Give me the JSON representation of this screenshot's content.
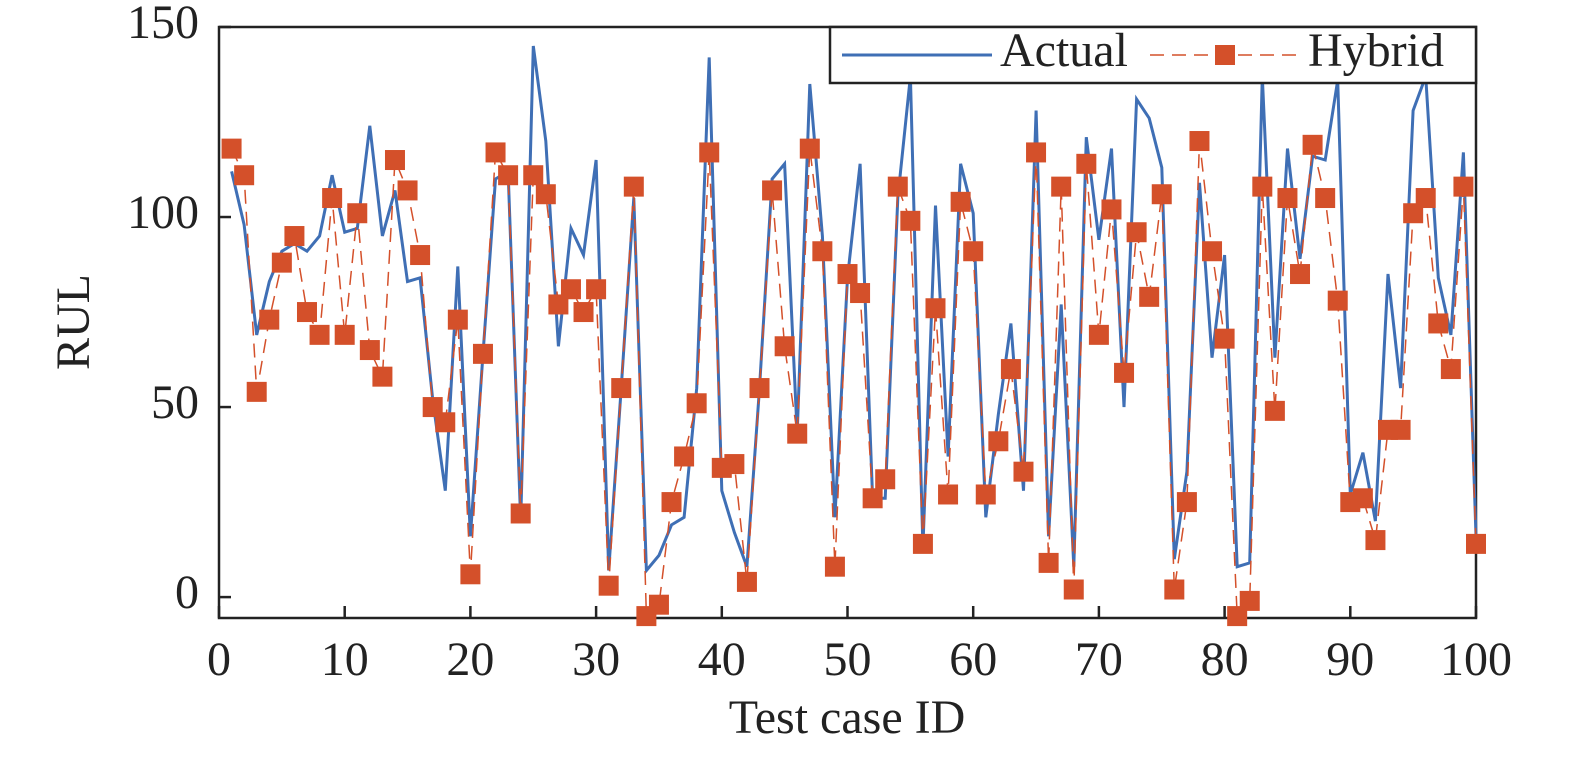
{
  "chart_data": {
    "type": "line",
    "x_label": "Test case ID",
    "y_label": "RUL",
    "x": [
      1,
      2,
      3,
      4,
      5,
      6,
      7,
      8,
      9,
      10,
      11,
      12,
      13,
      14,
      15,
      16,
      17,
      18,
      19,
      20,
      21,
      22,
      23,
      24,
      25,
      26,
      27,
      28,
      29,
      30,
      31,
      32,
      33,
      34,
      35,
      36,
      37,
      38,
      39,
      40,
      41,
      42,
      43,
      44,
      45,
      46,
      47,
      48,
      49,
      50,
      51,
      52,
      53,
      54,
      55,
      56,
      57,
      58,
      59,
      60,
      61,
      62,
      63,
      64,
      65,
      66,
      67,
      68,
      69,
      70,
      71,
      72,
      73,
      74,
      75,
      76,
      77,
      78,
      79,
      80,
      81,
      82,
      83,
      84,
      85,
      86,
      87,
      88,
      89,
      90,
      91,
      92,
      93,
      94,
      95,
      96,
      97,
      98,
      99,
      100
    ],
    "series": [
      {
        "name": "Actual",
        "color": "#3f6fb5",
        "style": "solid",
        "marker": "none",
        "values": [
          112,
          98,
          69,
          83,
          91,
          93,
          91,
          95,
          111,
          96,
          97,
          124,
          95,
          107,
          83,
          84,
          52,
          28,
          87,
          16,
          64,
          110,
          112,
          20,
          145,
          120,
          66,
          97,
          90,
          115,
          7,
          55,
          105,
          7,
          11,
          19,
          21,
          55,
          142,
          28,
          17,
          8,
          55,
          110,
          114,
          43,
          135,
          95,
          21,
          84,
          114,
          26,
          26,
          105,
          137,
          13,
          103,
          37,
          114,
          101,
          21,
          48,
          72,
          28,
          128,
          16,
          77,
          8,
          121,
          94,
          118,
          50,
          131,
          126,
          113,
          10,
          33,
          109,
          63,
          90,
          8,
          9,
          137,
          63,
          118,
          89,
          116,
          115,
          136,
          27,
          38,
          20,
          85,
          55,
          128,
          137,
          84,
          69,
          117,
          16
        ]
      },
      {
        "name": "Hybrid",
        "color": "#d4502a",
        "style": "dashed",
        "marker": "square",
        "values": [
          118,
          111,
          54,
          73,
          88,
          95,
          75,
          69,
          105,
          69,
          101,
          65,
          58,
          115,
          107,
          90,
          50,
          46,
          73,
          6,
          64,
          117,
          111,
          22,
          111,
          106,
          77,
          81,
          75,
          81,
          3,
          55,
          108,
          -5,
          -2,
          25,
          37,
          51,
          117,
          34,
          35,
          4,
          55,
          107,
          66,
          43,
          118,
          91,
          8,
          85,
          80,
          26,
          31,
          108,
          99,
          14,
          76,
          27,
          104,
          91,
          27,
          41,
          60,
          33,
          117,
          9,
          108,
          2,
          114,
          69,
          102,
          59,
          96,
          79,
          106,
          2,
          25,
          120,
          91,
          68,
          -5,
          -1,
          108,
          49,
          105,
          85,
          119,
          105,
          78,
          25,
          26,
          15,
          44,
          44,
          101,
          105,
          72,
          60,
          108,
          14
        ]
      }
    ],
    "xlim": [
      0,
      100
    ],
    "xticks": [
      0,
      10,
      20,
      30,
      40,
      50,
      60,
      70,
      80,
      90,
      100
    ],
    "ylim": [
      -5.5,
      150
    ],
    "yticks": [
      0,
      50,
      100,
      150
    ],
    "legend": "upper right",
    "grid": false
  }
}
